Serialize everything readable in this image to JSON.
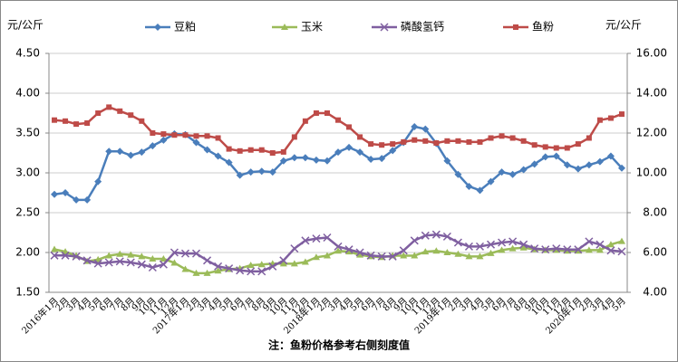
{
  "chart_data": {
    "type": "line",
    "y_label": "元/公斤",
    "y2_label": "元/公斤",
    "note": "注：鱼粉价格参考右侧刻度值",
    "categories": [
      "2016年1月",
      "2月",
      "3月",
      "4月",
      "5月",
      "6月",
      "7月",
      "8月",
      "9月",
      "10月",
      "11月",
      "12月",
      "2017年1月",
      "2月",
      "3月",
      "4月",
      "5月",
      "6月",
      "7月",
      "8月",
      "9月",
      "10月",
      "11月",
      "12月",
      "2018年1月",
      "2月",
      "3月",
      "4月",
      "5月",
      "6月",
      "7月",
      "8月",
      "9月",
      "10月",
      "11月",
      "12月",
      "2019年1月",
      "2月",
      "3月",
      "4月",
      "5月",
      "6月",
      "7月",
      "8月",
      "9月",
      "10月",
      "11月",
      "12月",
      "2020年1月",
      "2月",
      "3月",
      "4月",
      "5月"
    ],
    "series": [
      {
        "name": "豆粕",
        "color": "#4a7ebb",
        "marker": "diamond",
        "values": [
          2.73,
          2.75,
          2.66,
          2.66,
          2.89,
          3.27,
          3.27,
          3.22,
          3.26,
          3.34,
          3.41,
          3.49,
          3.48,
          3.38,
          3.29,
          3.21,
          3.13,
          2.97,
          3.01,
          3.02,
          3.01,
          3.15,
          3.19,
          3.19,
          3.16,
          3.15,
          3.26,
          3.32,
          3.26,
          3.17,
          3.18,
          3.28,
          3.38,
          3.58,
          3.55,
          3.37,
          3.15,
          2.98,
          2.83,
          2.78,
          2.89,
          3.01,
          2.98,
          3.04,
          3.11,
          3.2,
          3.21,
          3.1,
          3.05,
          3.1,
          3.14,
          3.21,
          3.06
        ]
      },
      {
        "name": "玉米",
        "color": "#9bbb59",
        "marker": "triangle",
        "values": [
          2.04,
          2.01,
          1.96,
          1.89,
          1.91,
          1.96,
          1.98,
          1.97,
          1.95,
          1.92,
          1.92,
          1.87,
          1.79,
          1.74,
          1.74,
          1.77,
          1.79,
          1.8,
          1.84,
          1.85,
          1.86,
          1.86,
          1.86,
          1.88,
          1.94,
          1.96,
          2.02,
          2.01,
          1.97,
          1.95,
          1.94,
          1.96,
          1.96,
          1.96,
          2.01,
          2.02,
          2.0,
          1.98,
          1.95,
          1.95,
          1.99,
          2.03,
          2.05,
          2.06,
          2.04,
          2.03,
          2.03,
          2.02,
          2.02,
          2.03,
          2.03,
          2.1,
          2.14
        ]
      },
      {
        "name": "磷酸氢钙",
        "color": "#7f5fa0",
        "marker": "x",
        "axis": "y2",
        "values": [
          5.85,
          5.85,
          5.8,
          5.6,
          5.45,
          5.5,
          5.55,
          5.5,
          5.4,
          5.25,
          5.4,
          6.0,
          5.95,
          5.95,
          5.6,
          5.3,
          5.2,
          5.1,
          5.05,
          5.05,
          5.3,
          5.6,
          6.2,
          6.6,
          6.7,
          6.75,
          6.3,
          6.15,
          6.0,
          5.85,
          5.8,
          5.8,
          6.1,
          6.6,
          6.85,
          6.9,
          6.8,
          6.5,
          6.3,
          6.3,
          6.4,
          6.5,
          6.55,
          6.4,
          6.2,
          6.15,
          6.2,
          6.15,
          6.15,
          6.55,
          6.4,
          6.1,
          6.05
        ]
      },
      {
        "name": "鱼粉",
        "color": "#be4b48",
        "marker": "square",
        "axis": "y2",
        "values": [
          12.65,
          12.6,
          12.45,
          12.5,
          13.0,
          13.3,
          13.1,
          12.9,
          12.6,
          12.0,
          11.95,
          11.9,
          11.9,
          11.85,
          11.85,
          11.75,
          11.2,
          11.1,
          11.15,
          11.15,
          11.0,
          11.05,
          11.8,
          12.6,
          13.0,
          13.0,
          12.65,
          12.3,
          11.8,
          11.45,
          11.4,
          11.45,
          11.55,
          11.65,
          11.6,
          11.5,
          11.6,
          11.6,
          11.55,
          11.55,
          11.75,
          11.85,
          11.75,
          11.6,
          11.4,
          11.3,
          11.25,
          11.25,
          11.45,
          11.75,
          12.65,
          12.75,
          12.95
        ]
      }
    ],
    "ylim": [
      1.5,
      4.5
    ],
    "yticks": [
      {
        "value": 1.5,
        "label": "1.50"
      },
      {
        "value": 2,
        "label": "2.00"
      },
      {
        "value": 2.5,
        "label": "2.50"
      },
      {
        "value": 3,
        "label": "3.00"
      },
      {
        "value": 3.5,
        "label": "3.50"
      },
      {
        "value": 4,
        "label": "4.00"
      },
      {
        "value": 4.5,
        "label": "4.50"
      }
    ],
    "y2lim": [
      4,
      16
    ],
    "y2ticks": [
      {
        "value": 4,
        "label": "4.00"
      },
      {
        "value": 6,
        "label": "6.00"
      },
      {
        "value": 8,
        "label": "8.00"
      },
      {
        "value": 10,
        "label": "10.00"
      },
      {
        "value": 12,
        "label": "12.00"
      },
      {
        "value": 14,
        "label": "14.00"
      },
      {
        "value": 16,
        "label": "16.00"
      }
    ]
  }
}
